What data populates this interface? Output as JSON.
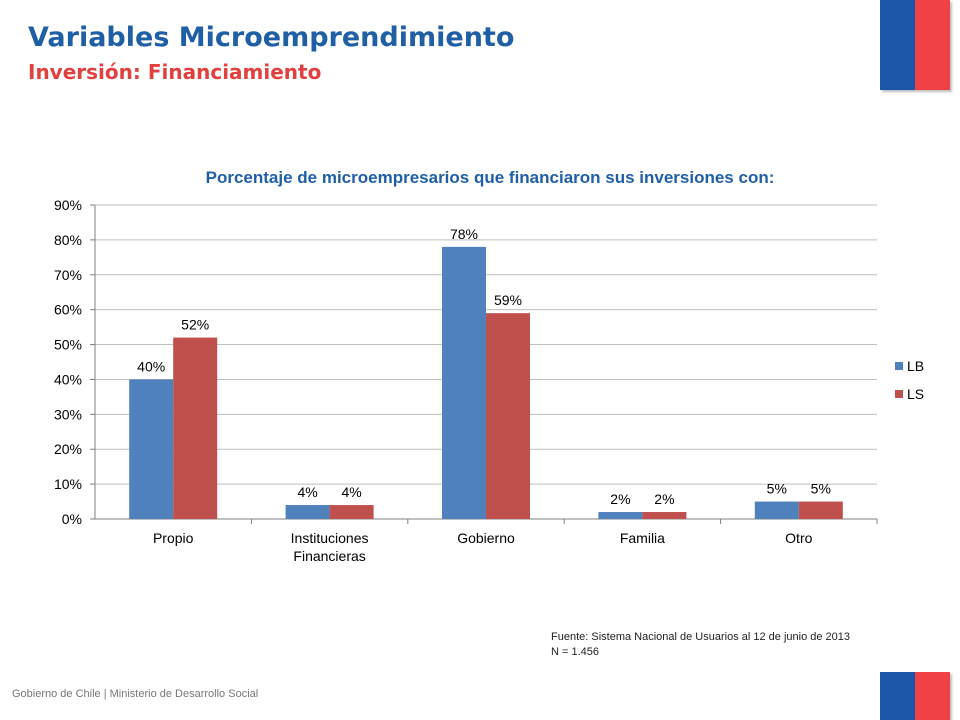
{
  "header": {
    "title": "Variables Microemprendimiento",
    "subtitle": "Inversión: Financiamiento"
  },
  "colors": {
    "title": "#1f5fa6",
    "subtitle": "#e2403e",
    "flag_blue": "#1c56a8",
    "flag_red": "#ef4146"
  },
  "chart_data": {
    "type": "bar",
    "title": "Porcentaje de microempresarios que financiaron sus inversiones con:",
    "categories": [
      "Propio",
      "Instituciones Financieras",
      "Gobierno",
      "Familia",
      "Otro"
    ],
    "series": [
      {
        "name": "LB",
        "values": [
          40,
          4,
          78,
          2,
          5
        ],
        "labels": [
          "40%",
          "4%",
          "78%",
          "2%",
          "5%"
        ],
        "color": "#4f81bd"
      },
      {
        "name": "LS",
        "values": [
          52,
          4,
          59,
          2,
          5
        ],
        "labels": [
          "52%",
          "4%",
          "59%",
          "2%",
          "5%"
        ],
        "color": "#c0504d"
      }
    ],
    "yticks": [
      "0%",
      "10%",
      "20%",
      "30%",
      "40%",
      "50%",
      "60%",
      "70%",
      "80%",
      "90%"
    ],
    "ylim": [
      0,
      90
    ],
    "grid": true,
    "legend": "right"
  },
  "source": {
    "line1": "Fuente: Sistema Nacional de Usuarios al 12 de junio de 2013",
    "line2": "N = 1.456"
  },
  "footer": {
    "text": "Gobierno de Chile | Ministerio de Desarrollo Social"
  }
}
